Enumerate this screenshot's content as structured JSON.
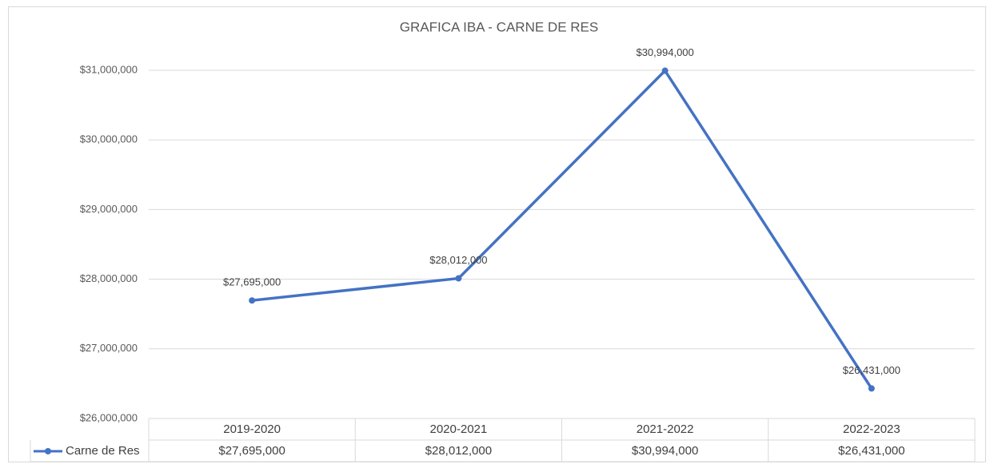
{
  "chart_data": {
    "type": "line",
    "title": "GRAFICA IBA - CARNE DE RES",
    "categories": [
      "2019-2020",
      "2020-2021",
      "2021-2022",
      "2022-2023"
    ],
    "series": [
      {
        "name": "Carne de Res",
        "color": "#4472c4",
        "values": [
          27695000,
          28012000,
          30994000,
          26431000
        ],
        "value_labels": [
          "$27,695,000",
          "$28,012,000",
          "$30,994,000",
          "$26,431,000"
        ]
      }
    ],
    "ylim": [
      26000000,
      31000000
    ],
    "yticks": [
      {
        "value": 26000000,
        "label": "$26,000,000"
      },
      {
        "value": 27000000,
        "label": "$27,000,000"
      },
      {
        "value": 28000000,
        "label": "$28,000,000"
      },
      {
        "value": 29000000,
        "label": "$29,000,000"
      },
      {
        "value": 30000000,
        "label": "$30,000,000"
      },
      {
        "value": 31000000,
        "label": "$31,000,000"
      }
    ],
    "grid": true,
    "data_table": true
  }
}
